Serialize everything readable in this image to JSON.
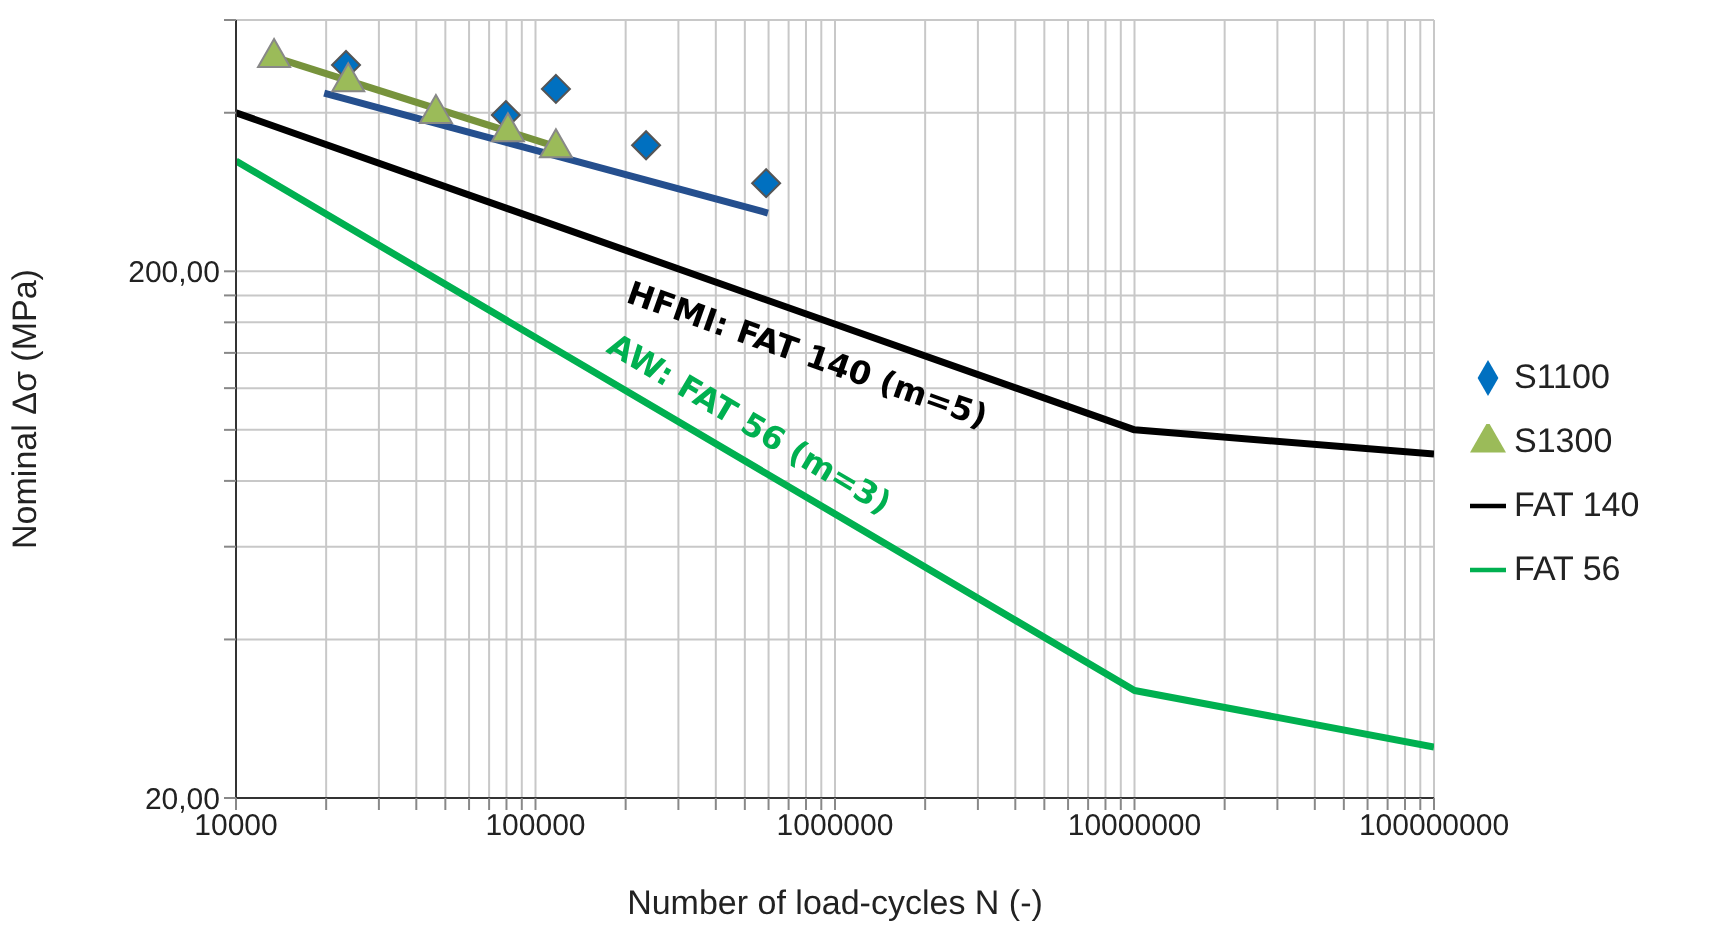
{
  "chart_data": {
    "type": "scatter",
    "xlabel": "Number of load-cycles N (-)",
    "ylabel": "Nominal Δσ (MPa)",
    "log": "xy",
    "grid": true,
    "legend": "right",
    "xlim": [
      10000,
      100000000
    ],
    "ylim": [
      20,
      600
    ],
    "xticks": [
      10000,
      {
        "value": 20000,
        "label": null
      },
      {
        "value": 30000,
        "label": null
      },
      {
        "value": 40000,
        "label": null
      },
      {
        "value": 50000,
        "label": null
      },
      {
        "value": 60000,
        "label": null
      },
      {
        "value": 70000,
        "label": null
      },
      {
        "value": 80000,
        "label": null
      },
      {
        "value": 90000,
        "label": null
      },
      100000,
      {
        "value": 200000,
        "label": null
      },
      {
        "value": 300000,
        "label": null
      },
      {
        "value": 400000,
        "label": null
      },
      {
        "value": 500000,
        "label": null
      },
      {
        "value": 600000,
        "label": null
      },
      {
        "value": 700000,
        "label": null
      },
      {
        "value": 800000,
        "label": null
      },
      {
        "value": 900000,
        "label": null
      },
      1000000,
      {
        "value": 2000000,
        "label": null
      },
      {
        "value": 3000000,
        "label": null
      },
      {
        "value": 4000000,
        "label": null
      },
      {
        "value": 5000000,
        "label": null
      },
      {
        "value": 6000000,
        "label": null
      },
      {
        "value": 7000000,
        "label": null
      },
      {
        "value": 8000000,
        "label": null
      },
      {
        "value": 9000000,
        "label": null
      },
      10000000,
      {
        "value": 20000000,
        "label": null
      },
      {
        "value": 30000000,
        "label": null
      },
      {
        "value": 40000000,
        "label": null
      },
      {
        "value": 50000000,
        "label": null
      },
      {
        "value": 60000000,
        "label": null
      },
      {
        "value": 70000000,
        "label": null
      },
      {
        "value": 80000000,
        "label": null
      },
      {
        "value": 90000000,
        "label": null
      },
      100000000
    ],
    "yticks": [
      {
        "value": 20,
        "label": "20,00"
      },
      {
        "value": 40,
        "label": null
      },
      {
        "value": 60,
        "label": null
      },
      {
        "value": 80,
        "label": null
      },
      {
        "value": 100,
        "label": null
      },
      {
        "value": 120,
        "label": null
      },
      {
        "value": 140,
        "label": null
      },
      {
        "value": 160,
        "label": null
      },
      {
        "value": 180,
        "label": null
      },
      {
        "value": 200,
        "label": "200,00"
      },
      {
        "value": 400,
        "label": null
      },
      {
        "value": 600,
        "label": null
      }
    ],
    "series": [
      {
        "type": "scatter",
        "color": "#0070c0",
        "name": "S1100",
        "marker": "diamond",
        "x": [
          23300,
          79600,
          117000,
          234000,
          589000
        ],
        "values": [
          493,
          396,
          444,
          347,
          294
        ]
      },
      {
        "type": "scatter",
        "color": "#9bbb59",
        "name": "S1300",
        "marker": "triangle",
        "x": [
          13400,
          23700,
          46500,
          80900,
          117000
        ],
        "values": [
          515,
          463,
          403,
          372,
          347
        ]
      },
      {
        "type": "line",
        "color": "#000000",
        "name": "FAT 140",
        "marker": "none",
        "x": [
          10000,
          10000000,
          100000000
        ],
        "values": [
          400,
          100,
          90
        ]
      },
      {
        "type": "line",
        "color": "#00b050",
        "name": "FAT 56",
        "marker": "none",
        "x": [
          10000,
          10000000,
          100000000
        ],
        "values": [
          324,
          32,
          25
        ]
      },
      {
        "type": "line",
        "color": "#77933c",
        "marker": "none",
        "x": [
          13400,
          117000
        ],
        "values": [
          510,
          345
        ]
      },
      {
        "type": "line",
        "color": "#254f8e",
        "marker": "none",
        "x": [
          19700,
          597000
        ],
        "values": [
          436,
          258
        ]
      }
    ],
    "annotations": [
      {
        "text": "HFMI: FAT 140 (m=5)",
        "x": 890000,
        "y": 162.5
      },
      {
        "text": "AW: FAT 56 (m=3)",
        "x": 453000,
        "y": 90.3
      }
    ]
  }
}
